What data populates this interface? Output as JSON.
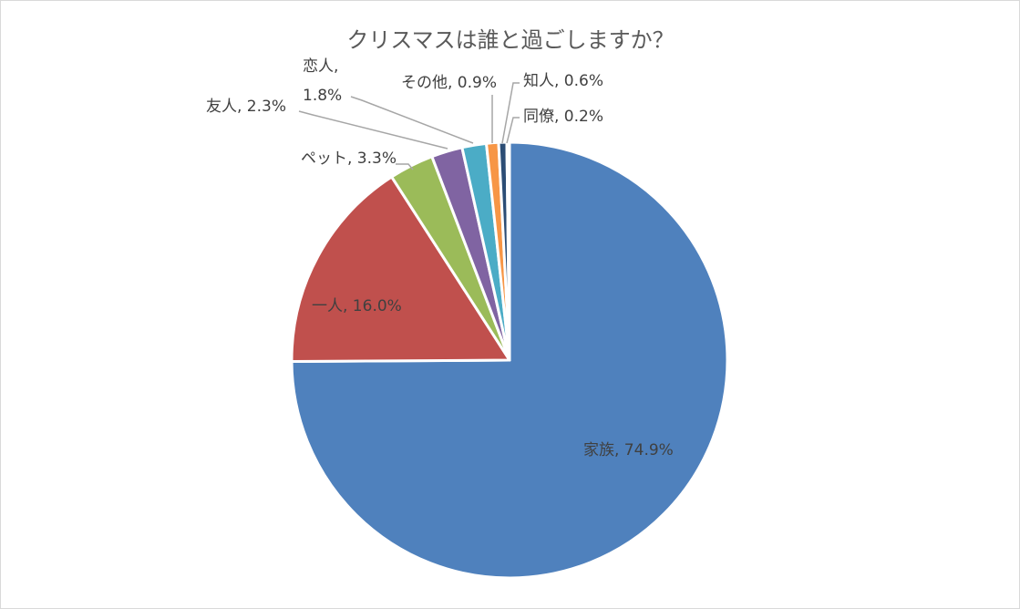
{
  "chart_data": {
    "type": "pie",
    "title": "クリスマスは誰と過ごしますか？",
    "slices": [
      {
        "name": "家族",
        "value": 74.9,
        "value_label": "74.9%",
        "color": "#4F81BD"
      },
      {
        "name": "一人",
        "value": 16.0,
        "value_label": "16.0%",
        "color": "#C0504D"
      },
      {
        "name": "ペット",
        "value": 3.3,
        "value_label": "3.3%",
        "color": "#9BBB59"
      },
      {
        "name": "友人",
        "value": 2.3,
        "value_label": "2.3%",
        "color": "#8064A2"
      },
      {
        "name": "恋人",
        "value": 1.8,
        "value_label": "1.8%",
        "color": "#4BACC6"
      },
      {
        "name": "その他",
        "value": 0.9,
        "value_label": "0.9%",
        "color": "#F79646"
      },
      {
        "name": "知人",
        "value": 0.6,
        "value_label": "0.6%",
        "color": "#2C4D75"
      },
      {
        "name": "同僚",
        "value": 0.2,
        "value_label": "0.2%",
        "color": "#772C2A"
      }
    ],
    "start_angle": "12 o'clock",
    "direction": "clockwise",
    "labels": "category name, percentage",
    "legend": "none"
  }
}
